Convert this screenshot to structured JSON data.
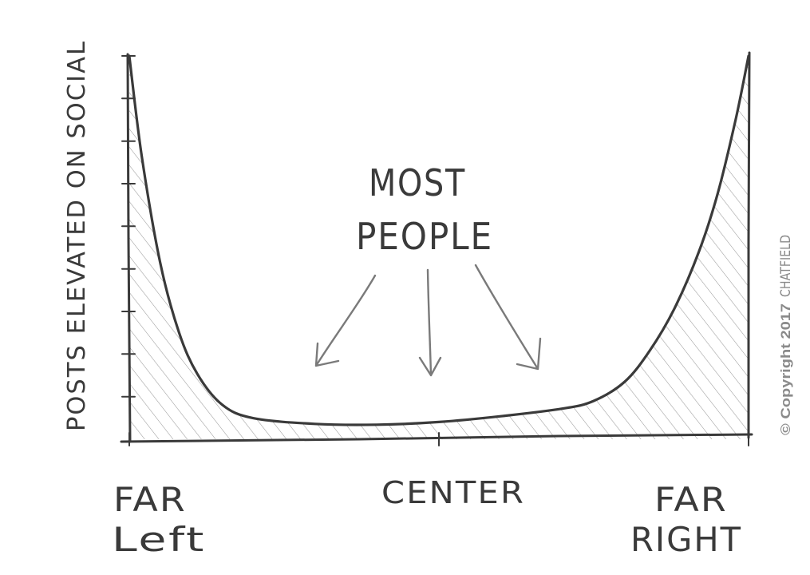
{
  "chart_data": {
    "type": "area",
    "ylabel": "POSTS ELEVATED ON SOCIAL",
    "x_labels": [
      {
        "line1": "FAR",
        "line2": "Left"
      },
      {
        "line1": "CENTER",
        "line2": ""
      },
      {
        "line1": "FAR",
        "line2": "RIGHT"
      }
    ],
    "x": [
      0,
      0.02,
      0.05,
      0.08,
      0.11,
      0.15,
      0.2,
      0.3,
      0.4,
      0.5,
      0.6,
      0.7,
      0.75,
      0.8,
      0.84,
      0.88,
      0.92,
      0.95,
      0.98,
      1.0
    ],
    "values": [
      1.0,
      0.74,
      0.46,
      0.28,
      0.17,
      0.09,
      0.055,
      0.04,
      0.038,
      0.045,
      0.06,
      0.08,
      0.1,
      0.15,
      0.23,
      0.34,
      0.49,
      0.64,
      0.84,
      1.0
    ],
    "xlim": [
      0,
      1
    ],
    "ylim": [
      0,
      1
    ],
    "y_ticks": 9,
    "x_ticks": 3,
    "fill": "hatched",
    "stroke_color": "#3a3a3a",
    "hatch_color": "#9a9a9a",
    "annotation": {
      "line1": "MOST",
      "line2": "PEOPLE",
      "arrows": 3
    }
  },
  "copyright": "© Copyright 2017",
  "byline": "CHATFIELD"
}
